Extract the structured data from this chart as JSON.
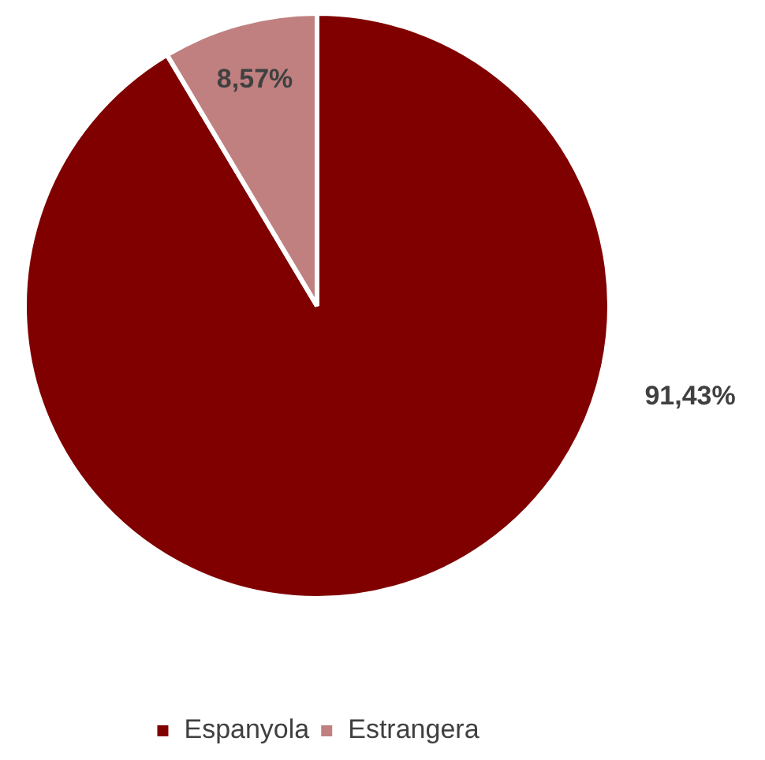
{
  "chart_data": {
    "type": "pie",
    "categories": [
      "Espanyola",
      "Estrangera"
    ],
    "values": [
      91.43,
      8.57
    ],
    "colors": [
      "#800000",
      "#c08080"
    ],
    "value_labels": [
      "91,43%",
      "8,57%"
    ],
    "legend": "bottom"
  }
}
